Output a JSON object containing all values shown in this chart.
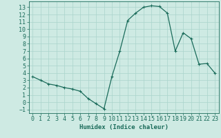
{
  "x": [
    0,
    1,
    2,
    3,
    4,
    5,
    6,
    7,
    8,
    9,
    10,
    11,
    12,
    13,
    14,
    15,
    16,
    17,
    18,
    19,
    20,
    21,
    22,
    23
  ],
  "y": [
    3.5,
    3.0,
    2.5,
    2.3,
    2.0,
    1.8,
    1.5,
    0.5,
    -0.2,
    -0.9,
    3.5,
    7.0,
    11.2,
    12.2,
    13.0,
    13.2,
    13.1,
    12.2,
    7.0,
    9.5,
    8.7,
    5.2,
    5.3,
    4.0
  ],
  "line_color": "#1a6b5a",
  "marker": "+",
  "markersize": 3.5,
  "linewidth": 0.9,
  "bg_color": "#ceeae3",
  "grid_color": "#aad4cb",
  "xlabel": "Humidex (Indice chaleur)",
  "xlabel_fontsize": 6.5,
  "tick_fontsize": 6,
  "ylim": [
    -1.5,
    13.8
  ],
  "xlim": [
    -0.5,
    23.5
  ],
  "yticks": [
    -1,
    0,
    1,
    2,
    3,
    4,
    5,
    6,
    7,
    8,
    9,
    10,
    11,
    12,
    13
  ],
  "xticks": [
    0,
    1,
    2,
    3,
    4,
    5,
    6,
    7,
    8,
    9,
    10,
    11,
    12,
    13,
    14,
    15,
    16,
    17,
    18,
    19,
    20,
    21,
    22,
    23
  ]
}
